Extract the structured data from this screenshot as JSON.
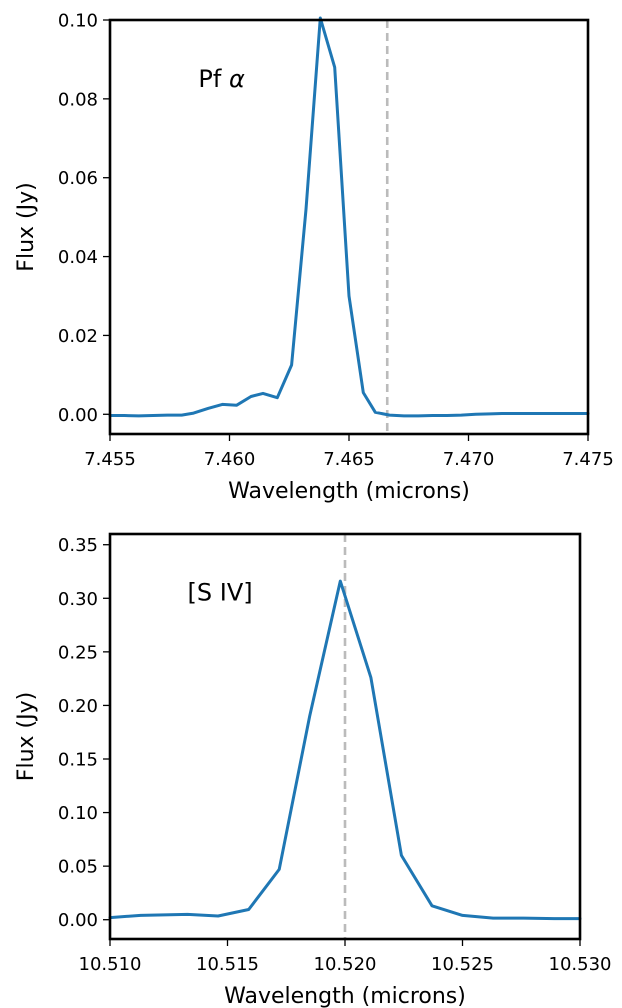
{
  "chart_data": [
    {
      "type": "line",
      "title": "",
      "xlabel": "Wavelength (microns)",
      "ylabel": "Flux (Jy)",
      "xlim": [
        7.455,
        7.475
      ],
      "ylim": [
        -0.005,
        0.1
      ],
      "xticks": [
        "7.455",
        "7.460",
        "7.465",
        "7.470",
        "7.475"
      ],
      "yticks": [
        "0.00",
        "0.02",
        "0.04",
        "0.06",
        "0.08",
        "0.10"
      ],
      "annotation": {
        "text": "Pf ",
        "symbol": "α",
        "x": 7.4587,
        "y": 0.083
      },
      "reference_line": {
        "x": 7.4666,
        "color": "#bbbbbb",
        "style": "dashed"
      },
      "series": [
        {
          "color": "#1f77b4",
          "x": [
            7.455,
            7.4562,
            7.4574,
            7.4585,
            7.4597,
            7.4609,
            7.462,
            7.4632,
            7.4644,
            7.4656,
            7.4667,
            7.4679,
            7.4691,
            7.4703,
            7.4714,
            7.4726,
            7.4738,
            7.475
          ],
          "y": [
            -0.0003,
            0.0005,
            0.0015,
            0.0025,
            0.0048,
            0.0042,
            0.0125,
            0.052,
            0.1005,
            0.088,
            0.03,
            0.0055,
            0.0005,
            0.0,
            0.0,
            0.0002,
            0.0002,
            0.0002
          ],
          "x_detail": [
            7.455,
            7.4556,
            7.4562,
            7.4568,
            7.4574,
            7.458,
            7.4585,
            7.4591,
            7.4597,
            7.4603,
            7.4609,
            7.4614,
            7.462,
            7.4626,
            7.4632,
            7.4638,
            7.4644,
            7.465,
            7.4656,
            7.4661,
            7.4667,
            7.4673,
            7.4679,
            7.4685,
            7.4691,
            7.4697,
            7.4703,
            7.4709,
            7.4714,
            7.472,
            7.4726,
            7.4732,
            7.4738,
            7.4744,
            7.475
          ],
          "y_detail": [
            -0.0003,
            -0.0003,
            -0.0004,
            -0.0003,
            -0.0002,
            -0.0002,
            0.0003,
            0.0015,
            0.0025,
            0.0023,
            0.0045,
            0.0053,
            0.0042,
            0.0125,
            0.052,
            0.1005,
            0.088,
            0.03,
            0.0055,
            0.0005,
            -0.0002,
            -0.0004,
            -0.0004,
            -0.0003,
            -0.0003,
            -0.0002,
            0.0,
            0.0001,
            0.0002,
            0.0002,
            0.0002,
            0.0002,
            0.0002,
            0.0002,
            0.0002
          ]
        }
      ]
    },
    {
      "type": "line",
      "title": "",
      "xlabel": "Wavelength (microns)",
      "ylabel": "Flux (Jy)",
      "xlim": [
        10.51,
        10.53
      ],
      "ylim": [
        -0.018,
        0.36
      ],
      "xticks": [
        "10.510",
        "10.515",
        "10.520",
        "10.525",
        "10.530"
      ],
      "yticks": [
        "0.00",
        "0.05",
        "0.10",
        "0.15",
        "0.20",
        "0.25",
        "0.30",
        "0.35"
      ],
      "annotation": {
        "text": "[S IV]",
        "symbol": "",
        "x": 10.5133,
        "y": 0.298
      },
      "reference_line": {
        "x": 10.52,
        "color": "#bbbbbb",
        "style": "dashed"
      },
      "series": [
        {
          "color": "#1f77b4",
          "x": [
            10.51,
            10.5113,
            10.5133,
            10.5146,
            10.5159,
            10.5172,
            10.5185,
            10.5198,
            10.5211,
            10.5224,
            10.5237,
            10.525,
            10.5263,
            10.5276,
            10.5289,
            10.53
          ],
          "y": [
            0.002,
            0.004,
            0.005,
            0.0035,
            0.0095,
            0.047,
            0.19,
            0.316,
            0.226,
            0.06,
            0.013,
            0.004,
            0.0015,
            0.0015,
            0.001,
            0.001
          ]
        }
      ]
    }
  ]
}
